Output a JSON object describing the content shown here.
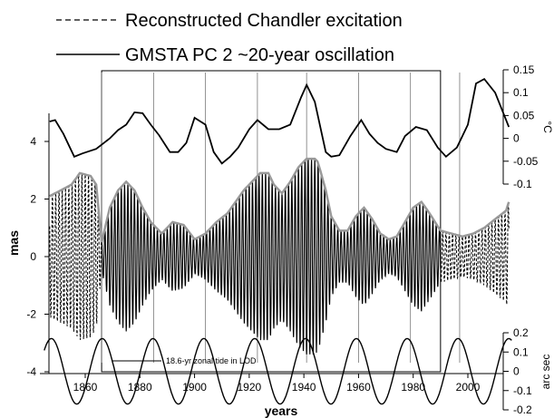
{
  "chart_data": {
    "type": "line",
    "legend": {
      "placement": "top-left",
      "entries": [
        {
          "label": "Reconstructed Chandler excitation",
          "style": "dashed"
        },
        {
          "label": "GMSTA PC 2 ~20-year oscillation",
          "style": "solid"
        }
      ]
    },
    "x_axis": {
      "label": "years",
      "ticks": [
        "1860",
        "1880",
        "1900",
        "1920",
        "1940",
        "1960",
        "1980",
        "2000"
      ],
      "tick_values": [
        1860,
        1880,
        1900,
        1920,
        1940,
        1960,
        1980,
        2000
      ],
      "range": [
        1845,
        2016
      ]
    },
    "y_axis_left": {
      "label": "mas",
      "ticks": [
        "4",
        "2",
        "0",
        "-2",
        "-4"
      ],
      "tick_values": [
        4,
        2,
        0,
        -2,
        -4
      ],
      "range": [
        -4,
        4.9
      ]
    },
    "y_axis_right_top": {
      "label": "°C",
      "ticks": [
        "0.15",
        "0.1",
        "0.05",
        "0",
        "-0.05",
        "-0.1"
      ],
      "tick_values": [
        0.15,
        0.1,
        0.05,
        0,
        -0.05,
        -0.1
      ],
      "range": [
        -0.1,
        0.15
      ]
    },
    "y_axis_right_bottom": {
      "label": "arc sec",
      "ticks": [
        "0.2",
        "0.1",
        "0",
        "-0.1",
        "-0.2"
      ],
      "tick_values": [
        0.2,
        0.1,
        0,
        -0.1,
        -0.2
      ],
      "range": [
        -0.2,
        0.2
      ]
    },
    "inset_legend": "18.6-yr zonal tide in LOD",
    "vertical_markers": [
      1866,
      1885,
      1904,
      1923,
      1941,
      1960,
      1979,
      1997
    ],
    "highlight_box_years": [
      1866,
      1990
    ],
    "gmsta_pc2_series": {
      "name": "GMSTA PC 2 ~20-year oscillation",
      "x": [
        1847,
        1849,
        1852,
        1856,
        1859,
        1864,
        1869,
        1872,
        1875,
        1878,
        1881,
        1884,
        1887,
        1891,
        1894,
        1897,
        1900,
        1904,
        1907,
        1910,
        1913,
        1916,
        1920,
        1923,
        1927,
        1931,
        1935,
        1939,
        1941,
        1944,
        1948,
        1950,
        1953,
        1957,
        1961,
        1964,
        1967,
        1970,
        1974,
        1977,
        1981,
        1985,
        1989,
        1992,
        1996,
        2000,
        2003,
        2006,
        2010,
        2013,
        2015
      ],
      "y": [
        0.037,
        0.04,
        0.01,
        -0.04,
        -0.033,
        -0.023,
        0.0,
        0.018,
        0.03,
        0.057,
        0.055,
        0.03,
        0.007,
        -0.03,
        -0.03,
        -0.01,
        0.045,
        0.03,
        -0.03,
        -0.055,
        -0.04,
        -0.02,
        0.02,
        0.04,
        0.02,
        0.02,
        0.03,
        0.09,
        0.117,
        0.08,
        -0.03,
        -0.04,
        -0.037,
        0.005,
        0.04,
        0.01,
        -0.01,
        -0.023,
        -0.03,
        0.005,
        0.025,
        0.018,
        -0.02,
        -0.04,
        -0.02,
        0.03,
        0.12,
        0.13,
        0.1,
        0.055,
        0.025
      ]
    },
    "chandler_envelope_series": {
      "name": "Reconstructed Chandler excitation envelope",
      "x": [
        1847,
        1851,
        1855,
        1858,
        1862,
        1864,
        1866,
        1869,
        1872,
        1875,
        1878,
        1881,
        1884,
        1888,
        1892,
        1896,
        1900,
        1904,
        1908,
        1912,
        1915,
        1918,
        1921,
        1924,
        1927,
        1929,
        1932,
        1935,
        1938,
        1941,
        1944,
        1945,
        1946,
        1948,
        1950,
        1953,
        1956,
        1959,
        1962,
        1965,
        1968,
        1971,
        1974,
        1977,
        1980,
        1983,
        1986,
        1990,
        1994,
        1998,
        2002,
        2006,
        2010,
        2014,
        2015
      ],
      "y": [
        2.1,
        2.3,
        2.5,
        2.9,
        2.8,
        2.5,
        0.5,
        1.7,
        2.3,
        2.6,
        2.3,
        1.7,
        1.2,
        0.8,
        1.2,
        1.1,
        0.6,
        0.8,
        1.2,
        1.5,
        1.9,
        2.3,
        2.6,
        2.9,
        2.9,
        2.5,
        2.2,
        2.6,
        3.1,
        3.4,
        3.4,
        3.3,
        3.0,
        2.3,
        1.4,
        0.9,
        0.9,
        1.4,
        1.7,
        1.3,
        0.8,
        0.6,
        0.7,
        1.2,
        1.7,
        1.9,
        1.5,
        0.9,
        0.8,
        0.7,
        0.8,
        1.0,
        1.3,
        1.6,
        1.9
      ]
    },
    "zonal_tide_series": {
      "name": "18.6-yr zonal tide in LOD",
      "period_years": 18.6,
      "amplitude_arcsec": 0.17,
      "peak_years": [
        1847.6,
        1866.2,
        1884.8,
        1903.4,
        1922.0,
        1940.6,
        1959.2,
        1977.8,
        1996.4,
        2015.0
      ]
    }
  }
}
